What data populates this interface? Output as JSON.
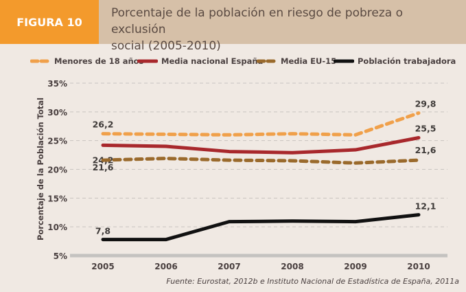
{
  "header": {
    "figure_label": "FIGURA 10",
    "title_line1": "Porcentaje de la población en riesgo de pobreza o exclusión",
    "title_line2": "social (2005-2010)"
  },
  "chart_data": {
    "type": "line",
    "title": "Porcentaje de la población en riesgo de pobreza o exclusión social (2005-2010)",
    "xlabel": "",
    "ylabel": "Porcentaje de la Población Total",
    "x": [
      "2005",
      "2006",
      "2007",
      "2008",
      "2009",
      "2010"
    ],
    "ylim": [
      5,
      35
    ],
    "yticks": [
      5,
      10,
      15,
      20,
      25,
      30,
      35
    ],
    "ytick_labels": [
      "5%",
      "10%",
      "15%",
      "20%",
      "25%",
      "30%",
      "35%"
    ],
    "grid": true,
    "legend_position": "top",
    "series": [
      {
        "name": "Menores de 18 años",
        "values": [
          26.2,
          26.1,
          26.0,
          26.2,
          26.0,
          29.8
        ],
        "color": "#f0a04a",
        "style": "dashed",
        "labels": [
          {
            "index": 0,
            "text": "26,2"
          },
          {
            "index": 5,
            "text": "29,8"
          }
        ]
      },
      {
        "name": "Media nacional España",
        "values": [
          24.2,
          24.0,
          23.1,
          22.9,
          23.4,
          25.5
        ],
        "color": "#a8282c",
        "style": "solid",
        "labels": [
          {
            "index": 0,
            "text": "24,2"
          },
          {
            "index": 5,
            "text": "25,5"
          }
        ]
      },
      {
        "name": "Media EU-15",
        "values": [
          21.6,
          21.9,
          21.6,
          21.5,
          21.1,
          21.6
        ],
        "color": "#9a6a2c",
        "style": "dashed",
        "labels": [
          {
            "index": 0,
            "text": "21,6"
          },
          {
            "index": 5,
            "text": "21,6"
          }
        ]
      },
      {
        "name": "Población trabajadora",
        "values": [
          7.8,
          7.8,
          10.9,
          11.0,
          10.9,
          12.1
        ],
        "color": "#111111",
        "style": "solid",
        "labels": [
          {
            "index": 0,
            "text": "7,8"
          },
          {
            "index": 5,
            "text": "12,1"
          }
        ]
      }
    ]
  },
  "source": "Fuente: Eurostat, 2012b e Instituto Nacional de Estadística de España, 2011a"
}
